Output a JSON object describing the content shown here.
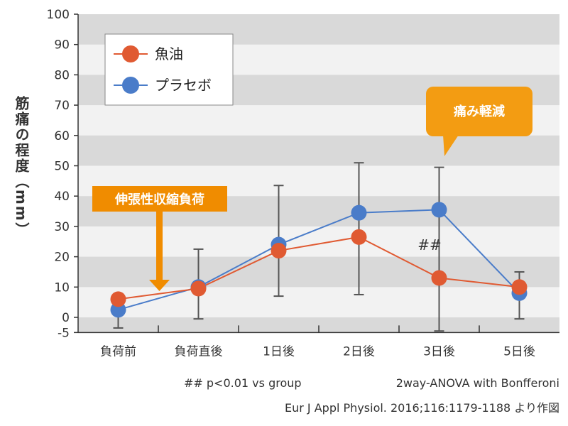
{
  "chart_data": {
    "type": "line",
    "ylabel": "筋痛の程度（mm）",
    "ylim": [
      -5,
      100
    ],
    "yticks": [
      100,
      90,
      80,
      70,
      60,
      50,
      40,
      30,
      20,
      10,
      0,
      -5
    ],
    "categories": [
      "負荷前",
      "負荷直後",
      "1日後",
      "2日後",
      "3日後",
      "5日後"
    ],
    "series": [
      {
        "name": "魚油",
        "color": "#e05a32",
        "values": [
          6,
          9.5,
          22,
          26.5,
          13,
          10
        ]
      },
      {
        "name": "プラセボ",
        "color": "#4a7cc9",
        "values": [
          2.5,
          10,
          24,
          34.5,
          35.5,
          8
        ]
      }
    ],
    "error_bars": [
      {
        "category_index": 0,
        "low": -3.5,
        "high": 6
      },
      {
        "category_index": 1,
        "low": -0.5,
        "high": 22.5
      },
      {
        "category_index": 2,
        "low": 7,
        "high": 43.5
      },
      {
        "category_index": 3,
        "low": 7.5,
        "high": 51
      },
      {
        "category_index": 4,
        "low": -4.5,
        "high": 49.5
      },
      {
        "category_index": 5,
        "low": -0.5,
        "high": 15
      }
    ],
    "legend_position": "top-left",
    "grid": "alternating-bands",
    "annotations": [
      {
        "text": "伸張性収縮負荷",
        "color": "#f08c00"
      },
      {
        "text": "痛み軽減",
        "color": "#f08c00"
      },
      {
        "text": "##",
        "color": "#333333"
      }
    ],
    "footnote_stat": "## p<0.01 vs group",
    "footnote_test": "2way-ANOVA with Bonfferoni",
    "source": "Eur J Appl Physiol. 2016;116:1179-1188 より作図"
  }
}
